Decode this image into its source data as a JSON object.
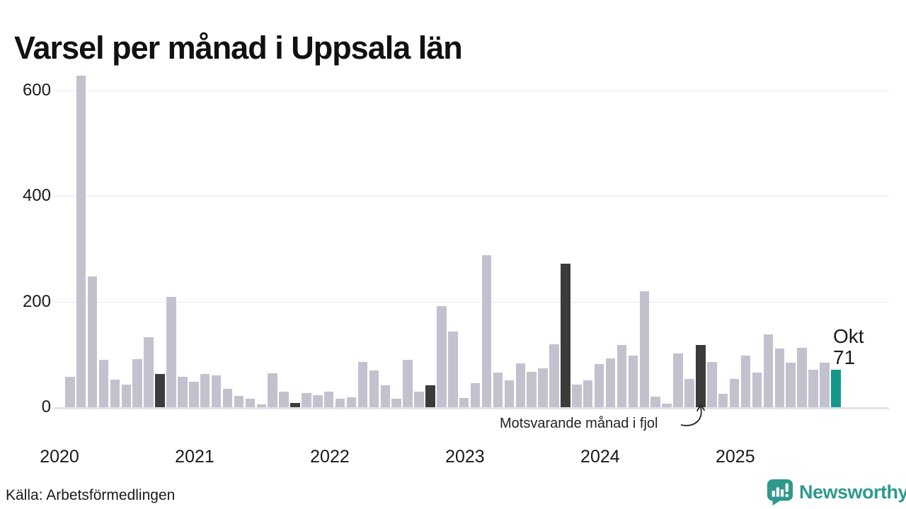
{
  "title": "Varsel per månad i Uppsala län",
  "source": "Källa: Arbetsförmedlingen",
  "logo": {
    "name": "Newsworthy"
  },
  "annotation": {
    "text": "Motsvarande månad i fjol"
  },
  "current_label": {
    "month": "Okt",
    "value": "71"
  },
  "colors": {
    "bar_default": "#c4c1ce",
    "bar_last_year_month": "#3b3b3b",
    "bar_current_month": "#14988a",
    "grid": "#e9e9ee",
    "baseline": "#e2e2e8",
    "text": "#1a1a1a",
    "logo_teal": "#2f998d"
  },
  "chart_data": {
    "type": "bar",
    "title": "Varsel per månad i Uppsala län",
    "xlabel": "",
    "ylabel": "",
    "ylim": [
      0,
      650
    ],
    "yticks": [
      0,
      200,
      400,
      600
    ],
    "year_ticks": [
      "2020",
      "2021",
      "2022",
      "2023",
      "2024",
      "2025"
    ],
    "grid": "horizontal",
    "highlight_note": "dark bars mark October of each prior year; teal bar is the current month (Okt 2025 = 71)",
    "points": [
      {
        "month": "2020-02",
        "value": 57,
        "kind": "default"
      },
      {
        "month": "2020-03",
        "value": 628,
        "kind": "default"
      },
      {
        "month": "2020-04",
        "value": 247,
        "kind": "default"
      },
      {
        "month": "2020-05",
        "value": 89,
        "kind": "default"
      },
      {
        "month": "2020-06",
        "value": 52,
        "kind": "default"
      },
      {
        "month": "2020-07",
        "value": 43,
        "kind": "default"
      },
      {
        "month": "2020-08",
        "value": 91,
        "kind": "default"
      },
      {
        "month": "2020-09",
        "value": 132,
        "kind": "default"
      },
      {
        "month": "2020-10",
        "value": 63,
        "kind": "last_year_month"
      },
      {
        "month": "2020-11",
        "value": 209,
        "kind": "default"
      },
      {
        "month": "2020-12",
        "value": 57,
        "kind": "default"
      },
      {
        "month": "2021-01",
        "value": 48,
        "kind": "default"
      },
      {
        "month": "2021-02",
        "value": 63,
        "kind": "default"
      },
      {
        "month": "2021-03",
        "value": 60,
        "kind": "default"
      },
      {
        "month": "2021-04",
        "value": 35,
        "kind": "default"
      },
      {
        "month": "2021-05",
        "value": 21,
        "kind": "default"
      },
      {
        "month": "2021-06",
        "value": 16,
        "kind": "default"
      },
      {
        "month": "2021-07",
        "value": 6,
        "kind": "default"
      },
      {
        "month": "2021-08",
        "value": 64,
        "kind": "default"
      },
      {
        "month": "2021-09",
        "value": 29,
        "kind": "default"
      },
      {
        "month": "2021-10",
        "value": 8,
        "kind": "last_year_month"
      },
      {
        "month": "2021-11",
        "value": 27,
        "kind": "default"
      },
      {
        "month": "2021-12",
        "value": 23,
        "kind": "default"
      },
      {
        "month": "2022-01",
        "value": 30,
        "kind": "default"
      },
      {
        "month": "2022-02",
        "value": 16,
        "kind": "default"
      },
      {
        "month": "2022-03",
        "value": 19,
        "kind": "default"
      },
      {
        "month": "2022-04",
        "value": 86,
        "kind": "default"
      },
      {
        "month": "2022-05",
        "value": 70,
        "kind": "default"
      },
      {
        "month": "2022-06",
        "value": 42,
        "kind": "default"
      },
      {
        "month": "2022-07",
        "value": 16,
        "kind": "default"
      },
      {
        "month": "2022-08",
        "value": 90,
        "kind": "default"
      },
      {
        "month": "2022-09",
        "value": 30,
        "kind": "default"
      },
      {
        "month": "2022-10",
        "value": 42,
        "kind": "last_year_month"
      },
      {
        "month": "2022-11",
        "value": 191,
        "kind": "default"
      },
      {
        "month": "2022-12",
        "value": 143,
        "kind": "default"
      },
      {
        "month": "2023-01",
        "value": 17,
        "kind": "default"
      },
      {
        "month": "2023-02",
        "value": 45,
        "kind": "default"
      },
      {
        "month": "2023-03",
        "value": 287,
        "kind": "default"
      },
      {
        "month": "2023-04",
        "value": 65,
        "kind": "default"
      },
      {
        "month": "2023-05",
        "value": 51,
        "kind": "default"
      },
      {
        "month": "2023-06",
        "value": 83,
        "kind": "default"
      },
      {
        "month": "2023-07",
        "value": 67,
        "kind": "default"
      },
      {
        "month": "2023-08",
        "value": 74,
        "kind": "default"
      },
      {
        "month": "2023-09",
        "value": 119,
        "kind": "default"
      },
      {
        "month": "2023-10",
        "value": 271,
        "kind": "last_year_month"
      },
      {
        "month": "2023-11",
        "value": 43,
        "kind": "default"
      },
      {
        "month": "2023-12",
        "value": 51,
        "kind": "default"
      },
      {
        "month": "2024-01",
        "value": 81,
        "kind": "default"
      },
      {
        "month": "2024-02",
        "value": 92,
        "kind": "default"
      },
      {
        "month": "2024-03",
        "value": 118,
        "kind": "default"
      },
      {
        "month": "2024-04",
        "value": 97,
        "kind": "default"
      },
      {
        "month": "2024-05",
        "value": 219,
        "kind": "default"
      },
      {
        "month": "2024-06",
        "value": 20,
        "kind": "default"
      },
      {
        "month": "2024-07",
        "value": 7,
        "kind": "default"
      },
      {
        "month": "2024-08",
        "value": 102,
        "kind": "default"
      },
      {
        "month": "2024-09",
        "value": 54,
        "kind": "default"
      },
      {
        "month": "2024-10",
        "value": 118,
        "kind": "last_year_month"
      },
      {
        "month": "2024-11",
        "value": 86,
        "kind": "default"
      },
      {
        "month": "2024-12",
        "value": 25,
        "kind": "default"
      },
      {
        "month": "2025-01",
        "value": 54,
        "kind": "default"
      },
      {
        "month": "2025-02",
        "value": 97,
        "kind": "default"
      },
      {
        "month": "2025-03",
        "value": 66,
        "kind": "default"
      },
      {
        "month": "2025-04",
        "value": 138,
        "kind": "default"
      },
      {
        "month": "2025-05",
        "value": 111,
        "kind": "default"
      },
      {
        "month": "2025-06",
        "value": 84,
        "kind": "default"
      },
      {
        "month": "2025-07",
        "value": 112,
        "kind": "default"
      },
      {
        "month": "2025-08",
        "value": 71,
        "kind": "default"
      },
      {
        "month": "2025-09",
        "value": 84,
        "kind": "default"
      },
      {
        "month": "2025-10",
        "value": 71,
        "kind": "current_month"
      }
    ]
  }
}
